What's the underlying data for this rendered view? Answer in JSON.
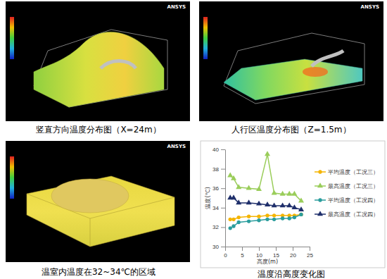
{
  "software_label": "ANSYS",
  "panels": [
    {
      "caption": "竖直方向温度分布图（X=24m）"
    },
    {
      "caption": "人行区温度分布图（Z=1.5m）"
    },
    {
      "caption": "温室内温度在32~34℃的区域"
    }
  ],
  "chart_caption": "温度沿高度变化图",
  "chart_data": {
    "type": "line",
    "x_label": "高度(m)",
    "y_label": "温度(℃)",
    "x": [
      1.5,
      2.5,
      4,
      7,
      10,
      12.5,
      14.5,
      17,
      19,
      20.5,
      22.5
    ],
    "xlim": [
      0,
      25
    ],
    "xticks": [
      0,
      5,
      10,
      15,
      20,
      25
    ],
    "ylim": [
      30,
      40
    ],
    "yticks": [
      30,
      32,
      34,
      36,
      38,
      40
    ],
    "grid": false,
    "legend": "right",
    "series": [
      {
        "name": "平均温度（工况三）",
        "color": "#f4b400",
        "marker": "circle",
        "values": [
          32.8,
          32.8,
          33.0,
          33.1,
          33.1,
          33.2,
          33.2,
          33.2,
          33.2,
          33.2,
          33.3
        ]
      },
      {
        "name": "最高温度（工况三）",
        "color": "#9acd5a",
        "marker": "triangle",
        "values": [
          37.3,
          37.0,
          36.1,
          36.0,
          35.9,
          39.5,
          35.5,
          35.4,
          35.4,
          35.4,
          34.7
        ]
      },
      {
        "name": "平均温度（工况四）",
        "color": "#2a9d9d",
        "marker": "circle",
        "values": [
          31.9,
          32.1,
          32.5,
          32.6,
          32.7,
          32.8,
          32.8,
          32.9,
          32.9,
          33.0,
          33.3
        ]
      },
      {
        "name": "最高温度（工况四）",
        "color": "#1f2f6b",
        "marker": "triangle",
        "values": [
          35.0,
          35.0,
          34.5,
          34.5,
          34.4,
          34.3,
          34.2,
          34.2,
          34.2,
          34.0,
          33.8
        ]
      }
    ]
  }
}
